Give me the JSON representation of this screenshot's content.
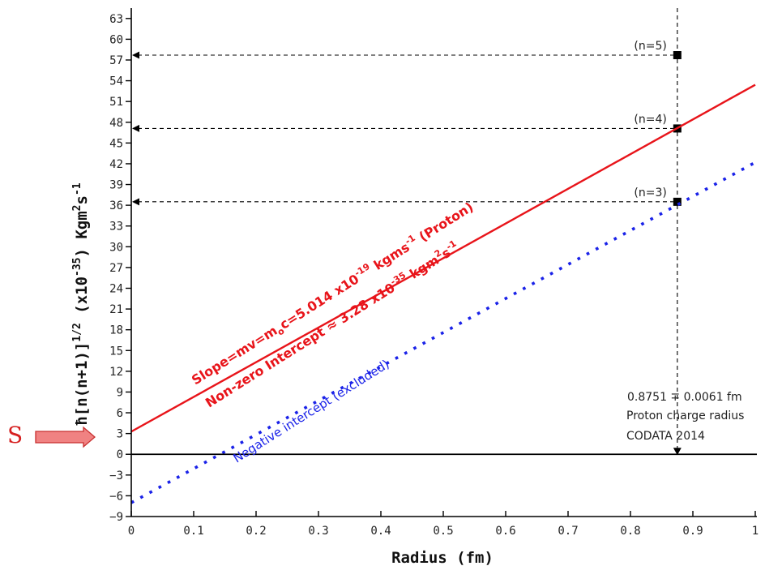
{
  "chart_data": {
    "type": "line",
    "xlabel": "Radius (fm)",
    "ylabel": "ħ[n(n+1)]1/2 (x10-35) Kgm2s-1",
    "ylabel_parts": {
      "main": "ħ[n(n+1)]",
      "sup1": "1/2",
      "mid": " (x10",
      "sup2": "-35",
      "end": ") Kgm",
      "sup3": "2",
      "end2": "s",
      "sup4": "-1"
    },
    "xlim": [
      0,
      1
    ],
    "ylim": [
      -9,
      64.5
    ],
    "x_ticks": [
      0,
      0.1,
      0.2,
      0.3,
      0.4,
      0.5,
      0.6,
      0.7,
      0.8,
      0.9,
      1
    ],
    "x_tick_labels": [
      "0",
      "0.1",
      "0.2",
      "0.3",
      "0.4",
      "0.5",
      "0.6",
      "0.7",
      "0.8",
      "0.9",
      "1"
    ],
    "y_ticks": [
      -9,
      -6,
      -3,
      0,
      3,
      6,
      9,
      12,
      15,
      18,
      21,
      24,
      27,
      30,
      33,
      36,
      39,
      42,
      45,
      48,
      51,
      54,
      57,
      60,
      63
    ],
    "y_tick_labels": [
      "−9",
      "−6",
      "−3",
      "0",
      "3",
      "6",
      "9",
      "12",
      "15",
      "18",
      "21",
      "24",
      "27",
      "30",
      "33",
      "36",
      "39",
      "42",
      "45",
      "48",
      "51",
      "54",
      "57",
      "60",
      "63"
    ],
    "series": [
      {
        "name": "Slope=mv=mₒc=5.014 x10-19 kgms-1 (Proton)",
        "style": "solid",
        "color": "#e8141a",
        "x": [
          0,
          1
        ],
        "y": [
          3.28,
          53.42
        ]
      },
      {
        "name": "Negative intercept (excluded)",
        "style": "dotted",
        "color": "#1a22e8",
        "x": [
          0,
          1
        ],
        "y": [
          -7.0,
          42.2
        ]
      }
    ],
    "points": [
      {
        "label": "(n=3)",
        "x": 0.8751,
        "y": 36.5
      },
      {
        "label": "(n=4)",
        "x": 0.8751,
        "y": 47.1
      },
      {
        "label": "(n=5)",
        "x": 0.8751,
        "y": 57.7
      }
    ],
    "vertical_marker_x": 0.8751,
    "zero_line_y": 0,
    "grid": false,
    "annotations": {
      "slope_text": {
        "a": "Slope=mv=m",
        "b": "o",
        "c": "c=5.014 x10",
        "d": "-19",
        "e": " kgms",
        "f": "-1",
        "g": " (Proton)"
      },
      "intercept_text": {
        "a": "Non-zero Intercept ≈ 3.28 x10",
        "b": "-35",
        "c": " kgm",
        "d": "2",
        "e": "s",
        "f": "-1"
      },
      "negative_intercept": "Negative intercept (excluded)",
      "radius_line1": "0.8751 ∓ 0.0061 fm",
      "radius_line2": "Proton charge radius",
      "radius_line3": "CODATA 2014",
      "s_marker": "S"
    },
    "colors": {
      "red_line": "#e8141a",
      "blue_line": "#1a22e8",
      "arrow_fill": "#f08282",
      "arrow_stroke": "#c83030",
      "s_text": "#d62020"
    }
  }
}
